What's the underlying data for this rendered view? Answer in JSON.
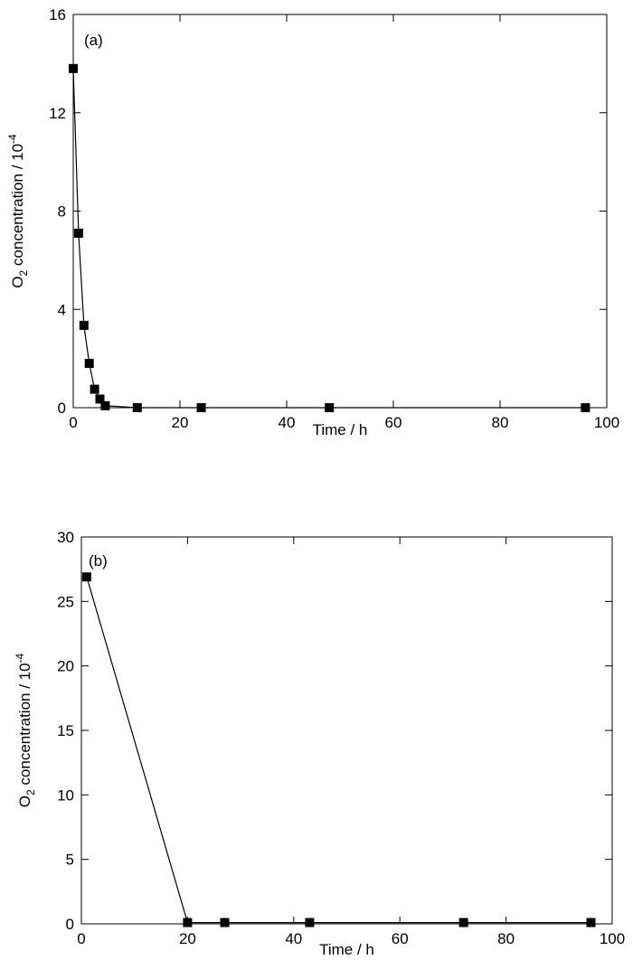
{
  "chart_data": [
    {
      "type": "line",
      "panel_label": "(a)",
      "xlabel": "Time / h",
      "ylabel": {
        "prefix": "O",
        "subscript": "2",
        "middle": " concentration / 10",
        "superscript": "-4"
      },
      "xlim": [
        0,
        100
      ],
      "ylim": [
        0,
        16
      ],
      "xticks": [
        "0",
        "20",
        "40",
        "60",
        "80",
        "100"
      ],
      "yticks": [
        "0",
        "4",
        "8",
        "12",
        "16"
      ],
      "grid": false,
      "marker": "square",
      "series": [
        {
          "x": [
            0,
            1,
            2,
            3,
            4,
            5,
            6,
            12,
            24,
            48,
            96
          ],
          "y": [
            13.8,
            7.1,
            3.35,
            1.8,
            0.75,
            0.35,
            0.08,
            0,
            0,
            0,
            0
          ]
        }
      ]
    },
    {
      "type": "line",
      "panel_label": "(b)",
      "xlabel": "Time / h",
      "ylabel": {
        "prefix": "O",
        "subscript": "2",
        "middle": " concentration / 10",
        "superscript": "-4"
      },
      "xlim": [
        0,
        100
      ],
      "ylim": [
        0,
        30
      ],
      "xticks": [
        "0",
        "20",
        "40",
        "60",
        "80",
        "100"
      ],
      "yticks": [
        "0",
        "5",
        "10",
        "15",
        "20",
        "25",
        "30"
      ],
      "grid": false,
      "marker": "square",
      "series": [
        {
          "x": [
            1,
            20,
            27,
            43,
            72,
            96
          ],
          "y": [
            26.9,
            0.1,
            0.1,
            0.1,
            0.1,
            0.1
          ]
        }
      ]
    }
  ]
}
